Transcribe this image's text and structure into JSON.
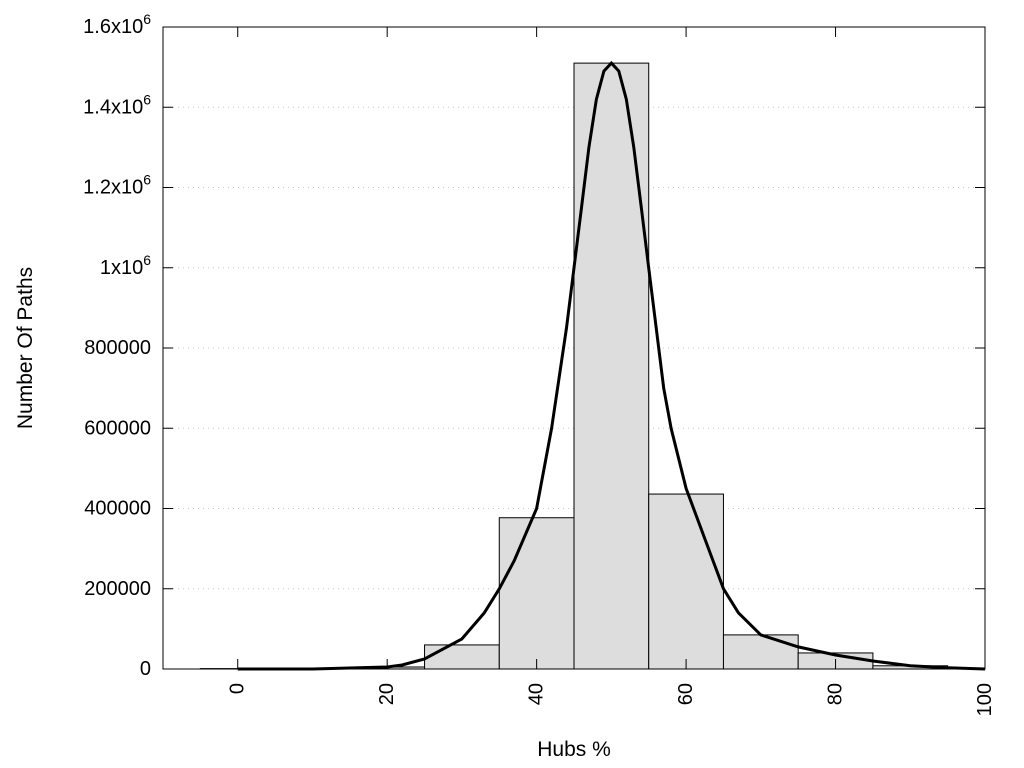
{
  "chart_data": {
    "type": "bar",
    "title": "",
    "xlabel": "Hubs %",
    "ylabel": "Number Of Paths",
    "xlim": [
      -10,
      100
    ],
    "ylim": [
      0,
      1600000
    ],
    "grid": "horizontal dotted",
    "x_ticks": [
      0,
      20,
      40,
      60,
      80,
      100
    ],
    "y_ticks": [
      {
        "value": 0,
        "label": "0"
      },
      {
        "value": 200000,
        "label": "200000"
      },
      {
        "value": 400000,
        "label": "400000"
      },
      {
        "value": 600000,
        "label": "600000"
      },
      {
        "value": 800000,
        "label": "800000"
      },
      {
        "value": 1000000,
        "label": "1x10",
        "exp": "6"
      },
      {
        "value": 1200000,
        "label": "1.2x10",
        "exp": "6"
      },
      {
        "value": 1400000,
        "label": "1.4x10",
        "exp": "6"
      },
      {
        "value": 1600000,
        "label": "1.6x10",
        "exp": "6"
      }
    ],
    "bins": [
      {
        "x0": -5,
        "x1": 5,
        "value": 1000
      },
      {
        "x0": 5,
        "x1": 15,
        "value": 2000
      },
      {
        "x0": 15,
        "x1": 25,
        "value": 5000
      },
      {
        "x0": 25,
        "x1": 35,
        "value": 60000
      },
      {
        "x0": 35,
        "x1": 45,
        "value": 377000
      },
      {
        "x0": 45,
        "x1": 55,
        "value": 1510000
      },
      {
        "x0": 55,
        "x1": 65,
        "value": 436000
      },
      {
        "x0": 65,
        "x1": 75,
        "value": 85000
      },
      {
        "x0": 75,
        "x1": 85,
        "value": 40000
      },
      {
        "x0": 85,
        "x1": 95,
        "value": 8000
      },
      {
        "x0": 95,
        "x1": 105,
        "value": 2000
      }
    ],
    "curve": {
      "x": [
        0,
        10,
        20,
        22,
        25,
        30,
        33,
        35,
        37,
        40,
        42,
        44,
        45,
        46,
        47,
        48,
        49,
        50,
        51,
        52,
        53,
        54,
        55,
        56,
        57,
        58,
        60,
        63,
        65,
        67,
        70,
        75,
        80,
        85,
        90,
        95,
        100
      ],
      "y": [
        0,
        0,
        5000,
        10000,
        25000,
        75000,
        140000,
        200000,
        270000,
        400000,
        600000,
        850000,
        1000000,
        1150000,
        1300000,
        1420000,
        1490000,
        1510000,
        1490000,
        1420000,
        1300000,
        1150000,
        1000000,
        850000,
        700000,
        600000,
        450000,
        300000,
        200000,
        140000,
        85000,
        55000,
        35000,
        20000,
        8000,
        3000,
        0
      ]
    }
  }
}
